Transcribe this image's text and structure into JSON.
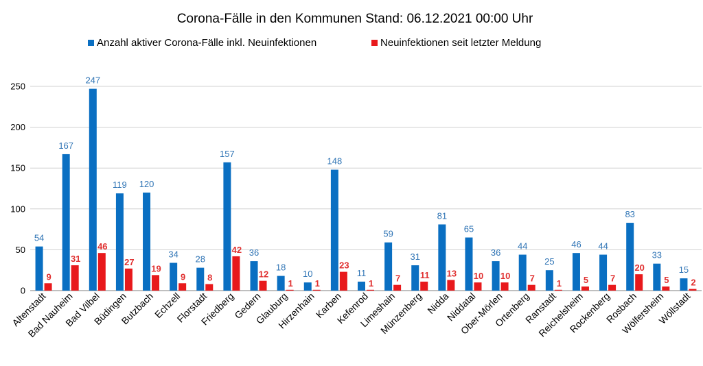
{
  "chart_data": {
    "type": "bar",
    "title": "Corona-Fälle in den Kommunen Stand: 06.12.2021 00:00 Uhr",
    "categories": [
      "Altenstadt",
      "Bad Nauheim",
      "Bad Vilbel",
      "Büdingen",
      "Butzbach",
      "Echzell",
      "Florstadt",
      "Friedberg",
      "Gedern",
      "Glauburg",
      "Hirzenhain",
      "Karben",
      "Kefenrod",
      "Limeshain",
      "Münzenberg",
      "Nidda",
      "Niddatal",
      "Ober-Mörlen",
      "Ortenberg",
      "Ranstadt",
      "Reichelsheim",
      "Rockenberg",
      "Rosbach",
      "Wölfersheim",
      "Wöllstadt"
    ],
    "series": [
      {
        "name": "Anzahl aktiver Corona-Fälle inkl. Neuinfektionen",
        "color": "#0a6fc2",
        "values": [
          54,
          167,
          247,
          119,
          120,
          34,
          28,
          157,
          36,
          18,
          10,
          148,
          11,
          59,
          31,
          81,
          65,
          36,
          44,
          25,
          46,
          44,
          83,
          33,
          15
        ]
      },
      {
        "name": "Neuinfektionen seit letzter Meldung",
        "color": "#e8191c",
        "values": [
          9,
          31,
          46,
          27,
          19,
          9,
          8,
          42,
          12,
          1,
          1,
          23,
          1,
          7,
          11,
          13,
          10,
          10,
          7,
          1,
          5,
          7,
          20,
          5,
          2
        ]
      }
    ],
    "yticks": [
      0,
      50,
      100,
      150,
      200,
      250
    ],
    "ylim": [
      0,
      250
    ],
    "grid": true,
    "legend_position": "top"
  }
}
